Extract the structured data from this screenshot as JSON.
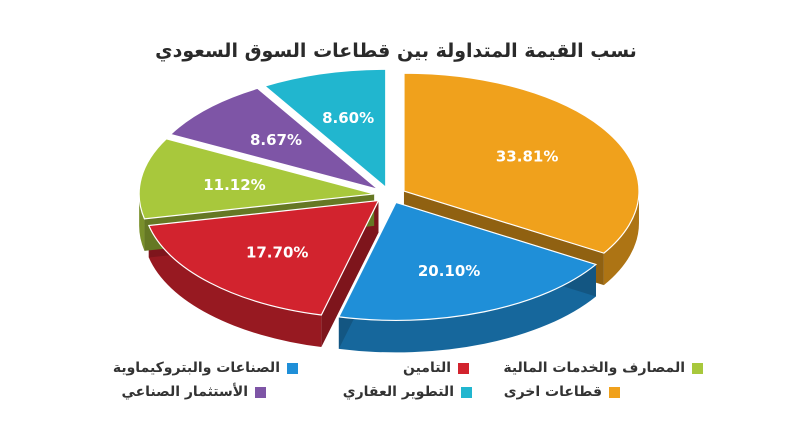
{
  "chart_data": {
    "type": "pie",
    "title": "نسب القيمة المتداولة بين قطاعات السوق السعودي",
    "legend_position": "bottom",
    "slices": [
      {
        "name": "قطاعات اخرى",
        "value": 33.81,
        "label": "33.81%",
        "color": "#f0a11c"
      },
      {
        "name": "الصناعات والبتروكيماوية",
        "value": 20.1,
        "label": "20.10%",
        "color": "#1f8fd8"
      },
      {
        "name": "التامين",
        "value": 17.7,
        "label": "17.70%",
        "color": "#d2232e"
      },
      {
        "name": "المصارف والخدمات المالية",
        "value": 11.12,
        "label": "11.12%",
        "color": "#a8c83c"
      },
      {
        "name": "الأستثمار الصناعي",
        "value": 8.67,
        "label": "8.67%",
        "color": "#7e55a6"
      },
      {
        "name": "التطوير العقاري",
        "value": 8.6,
        "label": "8.60%",
        "color": "#21b6cf"
      }
    ]
  }
}
